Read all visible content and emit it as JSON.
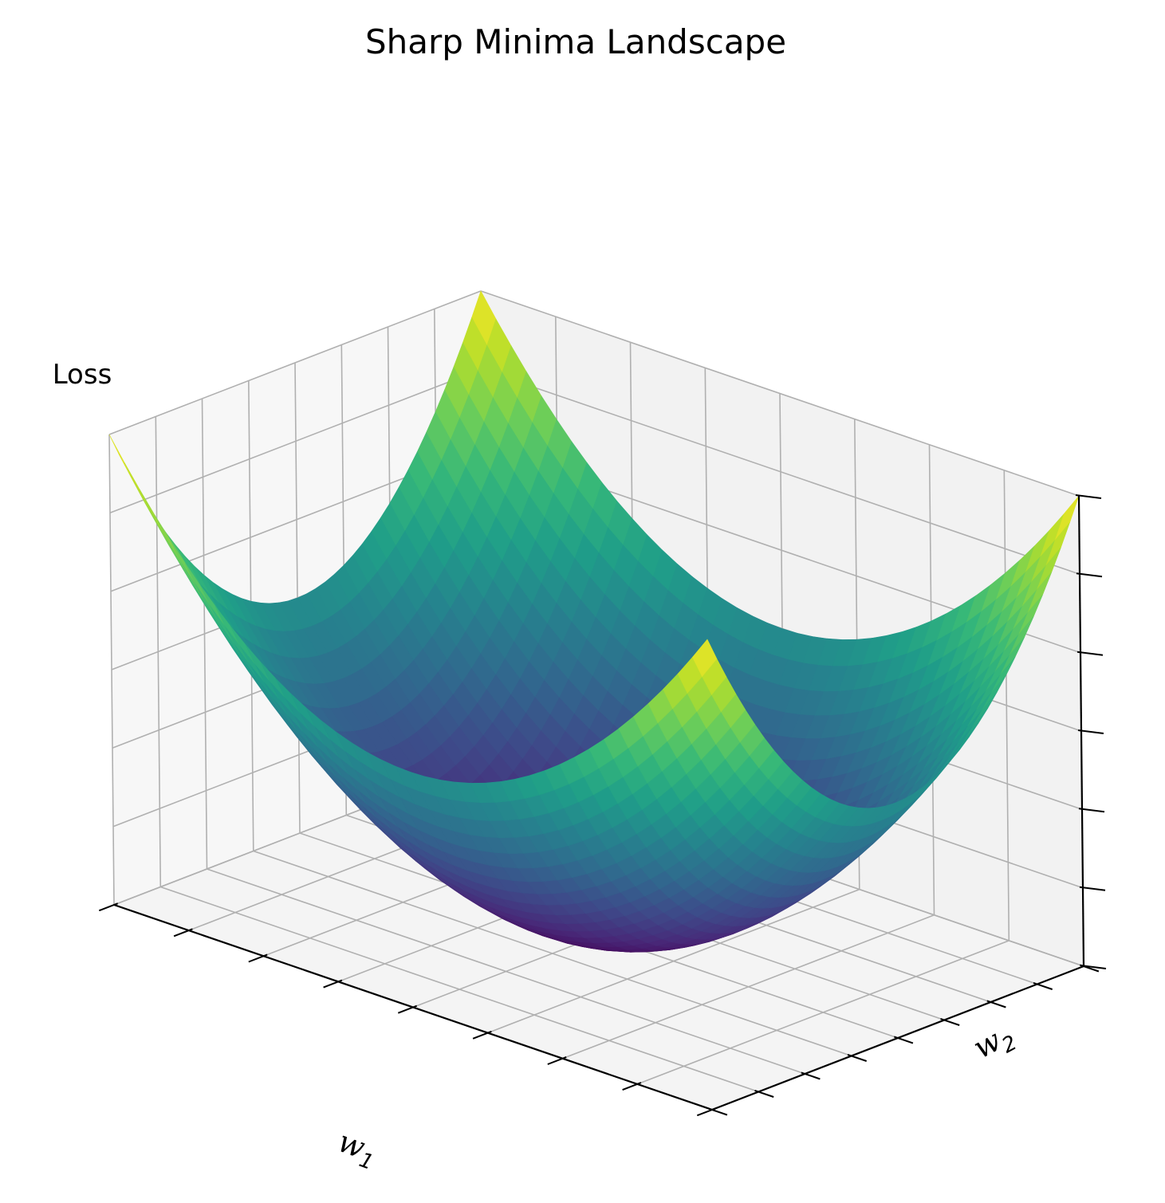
{
  "chart_data": {
    "type": "surface",
    "title": "Sharp Minima Landscape",
    "xlabel": {
      "symbol": "w",
      "subscript": "1"
    },
    "ylabel": {
      "symbol": "w",
      "subscript": "2"
    },
    "zlabel": "Loss",
    "surface_function": "w1^2 + w2^2",
    "xlim": [
      -2,
      2
    ],
    "ylim": [
      -2,
      2
    ],
    "zlim": [
      0,
      8
    ],
    "x_tick_count": 9,
    "y_tick_count": 9,
    "z_tick_count": 7,
    "tick_labels_visible": false,
    "grid": true,
    "colormap": "viridis",
    "colormap_stops": [
      "#440154",
      "#482878",
      "#3e4989",
      "#31688e",
      "#26828e",
      "#1f9e89",
      "#35b779",
      "#6ece58",
      "#b5de2b",
      "#fde725"
    ],
    "pane_colors": {
      "back": "#f2f2f2",
      "side": "#f7f7f7",
      "floor": "#f4f4f4",
      "grid": "#b0b0b0"
    }
  }
}
